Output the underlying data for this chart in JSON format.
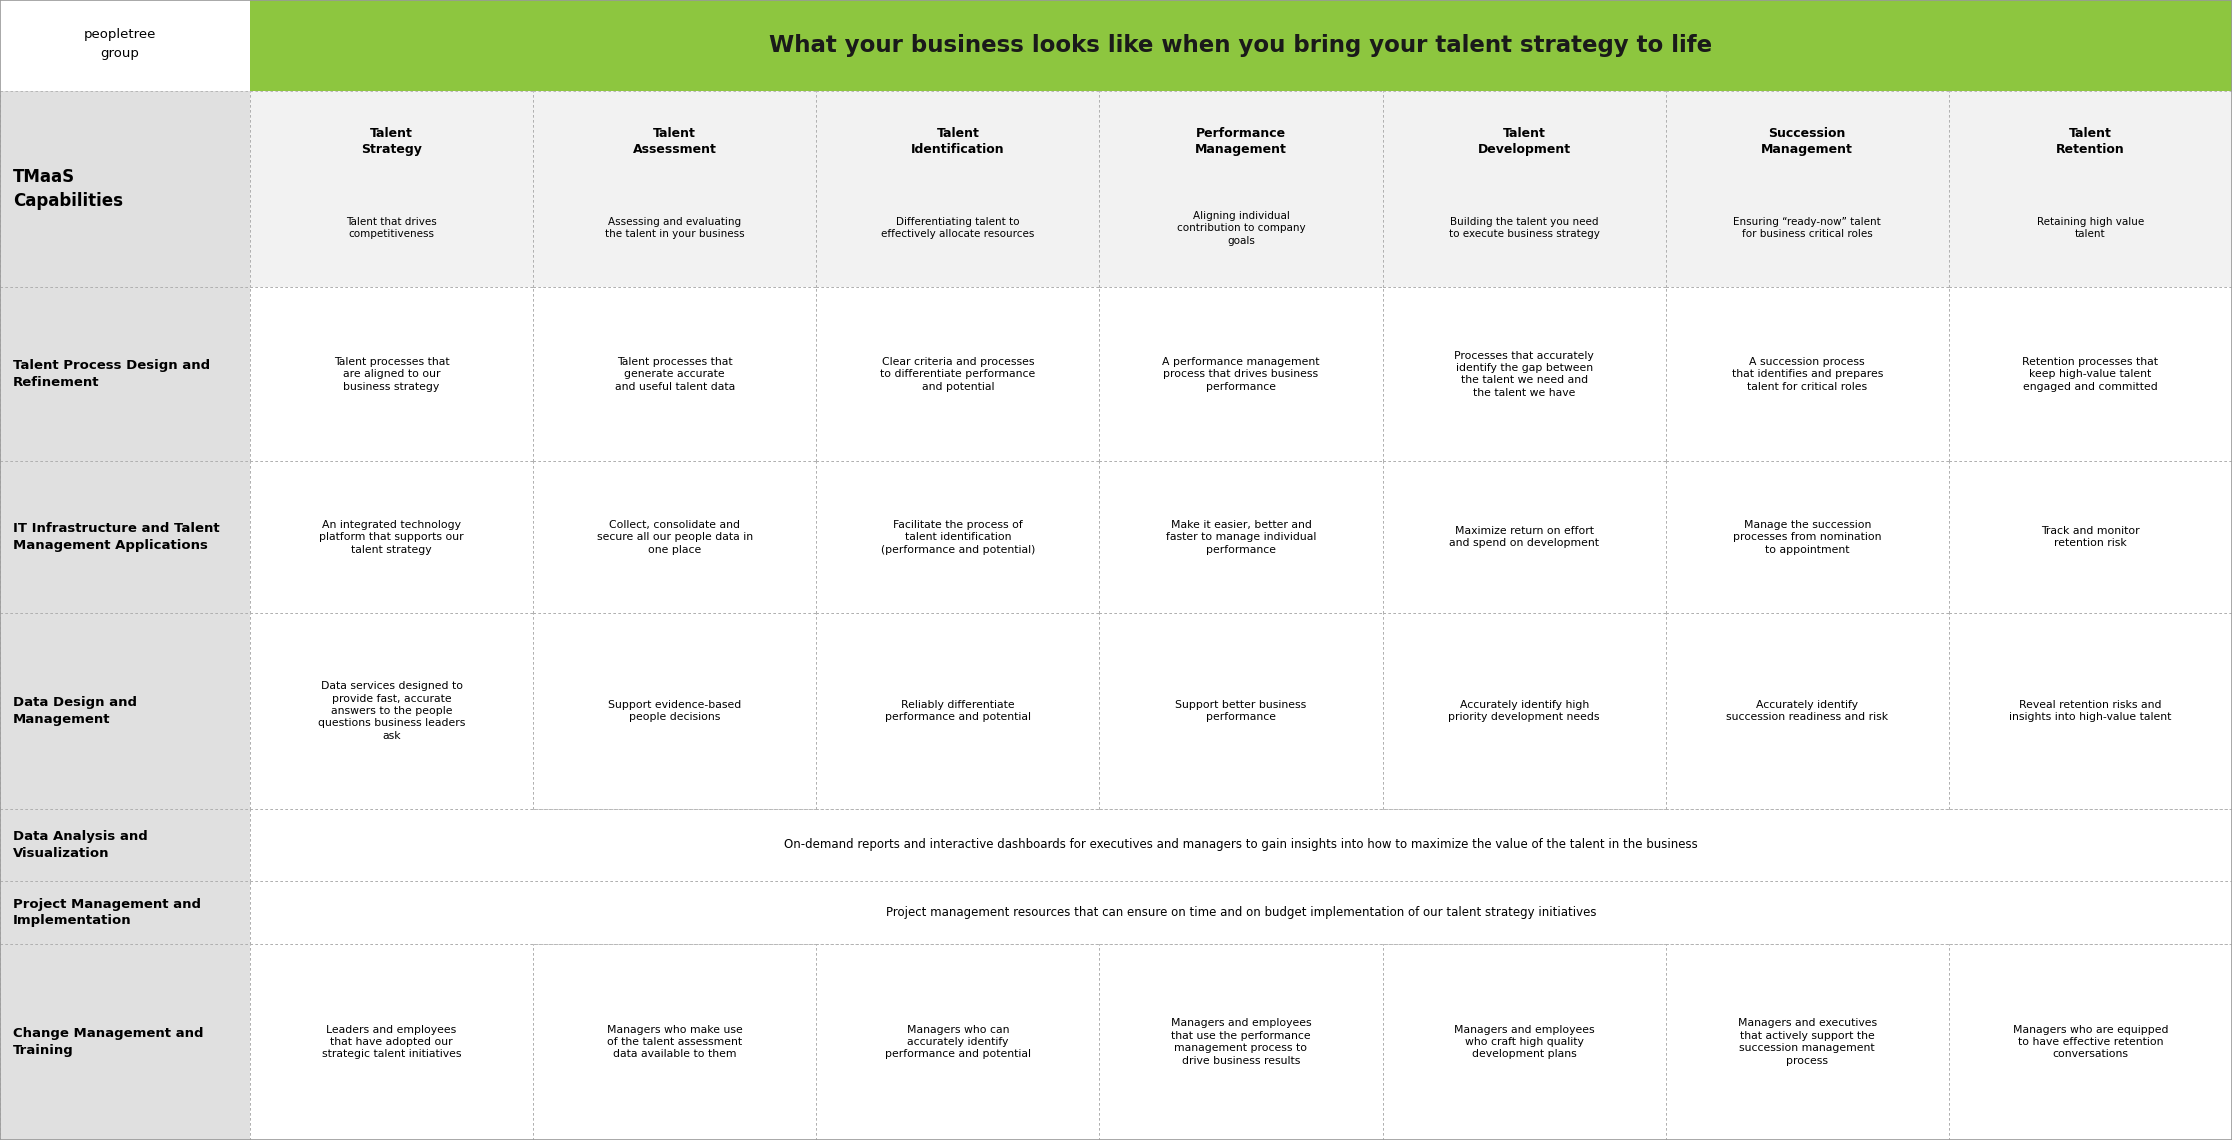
{
  "title": "What your business looks like when you bring your talent strategy to life",
  "title_bg": "#8dc63f",
  "logo_lines": [
    "peopletree",
    "group"
  ],
  "columns": [
    {
      "title": "Talent\nStrategy",
      "sub": "Talent that drives\ncompetitiveness"
    },
    {
      "title": "Talent\nAssessment",
      "sub": "Assessing and evaluating\nthe talent in your business"
    },
    {
      "title": "Talent\nIdentification",
      "sub": "Differentiating talent to\neffectively allocate resources"
    },
    {
      "title": "Performance\nManagement",
      "sub": "Aligning individual\ncontribution to company\ngoals"
    },
    {
      "title": "Talent\nDevelopment",
      "sub": "Building the talent you need\nto execute business strategy"
    },
    {
      "title": "Succession\nManagement",
      "sub": "Ensuring “ready-now” talent\nfor business critical roles"
    },
    {
      "title": "Talent\nRetention",
      "sub": "Retaining high value\ntalent"
    }
  ],
  "rows": [
    {
      "label": "Talent Process Design and\nRefinement",
      "cells": [
        "Talent processes that\nare aligned to our\nbusiness strategy",
        "Talent processes that\ngenerate accurate\nand useful talent data",
        "Clear criteria and processes\nto differentiate performance\nand potential",
        "A performance management\nprocess that drives business\nperformance",
        "Processes that accurately\nidentify the gap between\nthe talent we need and\nthe talent we have",
        "A succession process\nthat identifies and prepares\ntalent for critical roles",
        "Retention processes that\nkeep high-value talent\nengaged and committed"
      ]
    },
    {
      "label": "IT Infrastructure and Talent\nManagement Applications",
      "cells": [
        "An integrated technology\nplatform that supports our\ntalent strategy",
        "Collect, consolidate and\nsecure all our people data in\none place",
        "Facilitate the process of\ntalent identification\n(performance and potential)",
        "Make it easier, better and\nfaster to manage individual\nperformance",
        "Maximize return on effort\nand spend on development",
        "Manage the succession\nprocesses from nomination\nto appointment",
        "Track and monitor\nretention risk"
      ]
    },
    {
      "label": "Data Design and\nManagement",
      "cells": [
        "Data services designed to\nprovide fast, accurate\nanswers to the people\nquestions business leaders\nask",
        "Support evidence-based\npeople decisions",
        "Reliably differentiate\nperformance and potential",
        "Support better business\nperformance",
        "Accurately identify high\npriority development needs",
        "Accurately identify\nsuccession readiness and risk",
        "Reveal retention risks and\ninsights into high-value talent"
      ]
    },
    {
      "label": "Data Analysis and\nVisualization",
      "span": "On-demand reports and interactive dashboards for executives and managers to gain insights into how to maximize the value of the talent in the business"
    },
    {
      "label": "Project Management and\nImplementation",
      "span": "Project management resources that can ensure on time and on budget implementation of our talent strategy initiatives"
    },
    {
      "label": "Change Management and\nTraining",
      "cells": [
        "Leaders and employees\nthat have adopted our\nstrategic talent initiatives",
        "Managers who make use\nof the talent assessment\ndata available to them",
        "Managers who can\naccurately identify\nperformance and potential",
        "Managers and employees\nthat use the performance\nmanagement process to\ndrive business results",
        "Managers and employees\nwho craft high quality\ndevelopment plans",
        "Managers and executives\nthat actively support the\nsuccession management\nprocess",
        "Managers who are equipped\nto have effective retention\nconversations"
      ]
    }
  ],
  "label_bg": "#e0e0e0",
  "header_bg": "#f2f2f2",
  "cell_bg": "#ffffff",
  "grid_color": "#b0b0b0",
  "grid_dash": [
    2,
    3
  ]
}
